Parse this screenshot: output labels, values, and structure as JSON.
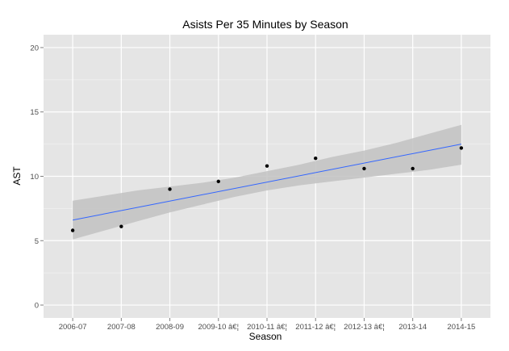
{
  "chart_data": {
    "type": "scatter",
    "title": "Asists Per 35 Minutes by Season",
    "xlabel": "Season",
    "ylabel": "AST",
    "categories": [
      "2006-07",
      "2007-08",
      "2008-09",
      "2009-10 â€¦",
      "2010-11 â€¦",
      "2011-12 â€¦",
      "2012-13 â€¦",
      "2013-14",
      "2014-15"
    ],
    "values": [
      5.8,
      6.1,
      9.0,
      9.6,
      10.8,
      11.4,
      10.6,
      10.6,
      12.2
    ],
    "ylim": [
      -1,
      21
    ],
    "yticks": [
      0,
      5,
      10,
      15,
      20
    ],
    "grid": true,
    "trend": {
      "type": "linear",
      "start": 6.6,
      "end": 12.5,
      "ci_lower": [
        5.1,
        5.8,
        6.5,
        7.2,
        7.8,
        8.4,
        8.9,
        9.3,
        9.6,
        9.9,
        10.2,
        10.5,
        10.9
      ],
      "ci_upper": [
        8.1,
        8.5,
        8.9,
        9.2,
        9.5,
        9.9,
        10.4,
        10.9,
        11.5,
        12.0,
        12.6,
        13.3,
        14.0
      ]
    },
    "colors": {
      "panel": "#e5e5e5",
      "grid_major": "#ffffff",
      "grid_minor": "#f2f2f2",
      "point": "#000000",
      "line": "#3366ff",
      "ribbon": "#c2c2c2"
    }
  }
}
